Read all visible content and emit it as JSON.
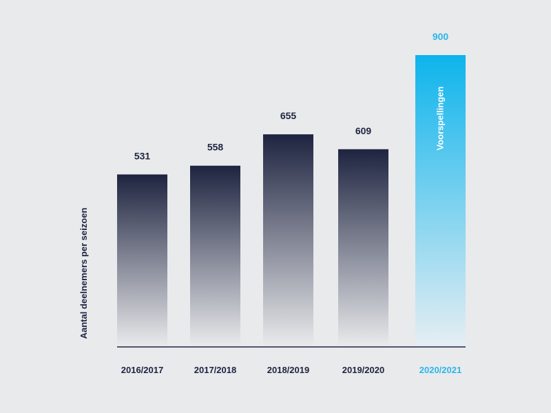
{
  "colors": {
    "background": "#e9eaec",
    "bar_top": "#1e2440",
    "bar_bottom": "#e9eaec",
    "forecast_top": "#0db4ec",
    "forecast_bottom": "#e6eef3",
    "axis_line": "#1e2440",
    "label_text": "#1e2440",
    "forecast_text": "#2cb5e8",
    "forecast_inner_text": "#ffffff"
  },
  "chart_data": {
    "type": "bar",
    "title": "",
    "xlabel": "",
    "ylabel": "Aantal deelnemers per seizoen",
    "ylim": [
      0,
      950
    ],
    "grid": false,
    "categories": [
      "2016/2017",
      "2017/2018",
      "2018/2019",
      "2019/2020",
      "2020/2021"
    ],
    "values": [
      531,
      558,
      655,
      609,
      900
    ],
    "data_labels": [
      "531",
      "558",
      "655",
      "609",
      "900"
    ],
    "forecast": [
      false,
      false,
      false,
      false,
      true
    ],
    "forecast_label": "Voorspellingen"
  }
}
